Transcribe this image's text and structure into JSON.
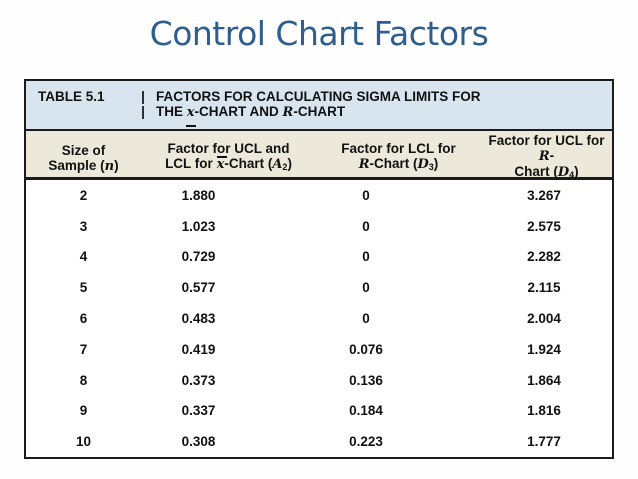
{
  "slide": {
    "title": "Control Chart Factors"
  },
  "colors": {
    "title": "#2d5e8e",
    "caption-band": "#d9e5ee",
    "header-band": "#ece9da",
    "border": "#1b1b1b",
    "text": "#111111"
  },
  "table": {
    "label": "TABLE 5.1",
    "divider_glyph": "|",
    "caption": {
      "line1": "FACTORS FOR CALCULATING SIGMA LIMITS FOR",
      "line2_the": "THE ",
      "line2_xbar": "x",
      "line2_mid": "-CHART AND ",
      "line2_R": "R",
      "line2_end": "-CHART"
    },
    "columns": {
      "c1": {
        "l1": "Size of",
        "l2_pre": "Sample (",
        "l2_var": "n",
        "l2_post": ")"
      },
      "c2": {
        "l1": "Factor for UCL and",
        "l2_pre": "LCL for ",
        "l2_var": "x",
        "l2_mid": "-Chart (",
        "l2_sym": "A",
        "l2_sub": "2",
        "l2_post": ")"
      },
      "c3": {
        "l1": "Factor for LCL for",
        "l2_var": "R",
        "l2_mid": "-Chart (",
        "l2_sym": "D",
        "l2_sub": "3",
        "l2_post": ")"
      },
      "c4": {
        "l1_pre": "Factor for UCL for ",
        "l1_var": "R",
        "l1_post": "-",
        "l2_pre": "Chart (",
        "l2_sym": "D",
        "l2_sub": "4",
        "l2_post": ")"
      }
    },
    "rows": [
      {
        "n": "2",
        "a2": "1.880",
        "d3": "0",
        "d4": "3.267"
      },
      {
        "n": "3",
        "a2": "1.023",
        "d3": "0",
        "d4": "2.575"
      },
      {
        "n": "4",
        "a2": "0.729",
        "d3": "0",
        "d4": "2.282"
      },
      {
        "n": "5",
        "a2": "0.577",
        "d3": "0",
        "d4": "2.115"
      },
      {
        "n": "6",
        "a2": "0.483",
        "d3": "0",
        "d4": "2.004"
      },
      {
        "n": "7",
        "a2": "0.419",
        "d3": "0.076",
        "d4": "1.924"
      },
      {
        "n": "8",
        "a2": "0.373",
        "d3": "0.136",
        "d4": "1.864"
      },
      {
        "n": "9",
        "a2": "0.337",
        "d3": "0.184",
        "d4": "1.816"
      },
      {
        "n": "10",
        "a2": "0.308",
        "d3": "0.223",
        "d4": "1.777"
      }
    ]
  },
  "chart_data": {
    "type": "table",
    "title": "Control Chart Factors",
    "caption": "TABLE 5.1 | FACTORS FOR CALCULATING SIGMA LIMITS FOR THE x̄-CHART AND R-CHART",
    "columns": [
      "Size of Sample (n)",
      "Factor for UCL and LCL for x̄-Chart (A2)",
      "Factor for LCL for R-Chart (D3)",
      "Factor for UCL for R-Chart (D4)"
    ],
    "rows": [
      [
        2,
        1.88,
        0,
        3.267
      ],
      [
        3,
        1.023,
        0,
        2.575
      ],
      [
        4,
        0.729,
        0,
        2.282
      ],
      [
        5,
        0.577,
        0,
        2.115
      ],
      [
        6,
        0.483,
        0,
        2.004
      ],
      [
        7,
        0.419,
        0.076,
        1.924
      ],
      [
        8,
        0.373,
        0.136,
        1.864
      ],
      [
        9,
        0.337,
        0.184,
        1.816
      ],
      [
        10,
        0.308,
        0.223,
        1.777
      ]
    ]
  }
}
